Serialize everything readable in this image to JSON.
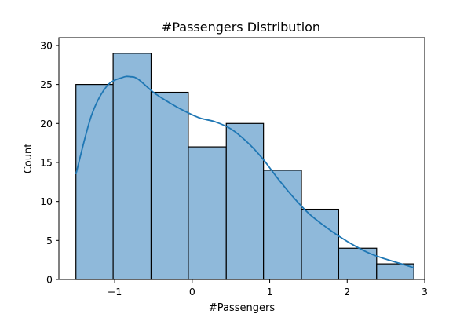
{
  "chart_data": {
    "type": "bar",
    "title": "#Passengers Distribution",
    "xlabel": "#Passengers",
    "ylabel": "Count",
    "xlim": [
      -1.72,
      3.0
    ],
    "ylim": [
      0,
      31
    ],
    "xticks": [
      -1,
      0,
      1,
      2,
      3
    ],
    "xtick_labels": [
      "−1",
      "0",
      "1",
      "2",
      "3"
    ],
    "yticks": [
      0,
      5,
      10,
      15,
      20,
      25,
      30
    ],
    "ytick_labels": [
      "0",
      "5",
      "10",
      "15",
      "20",
      "25",
      "30"
    ],
    "bin_edges": [
      -1.5,
      -1.02,
      -0.53,
      -0.05,
      0.44,
      0.92,
      1.41,
      1.89,
      2.38,
      2.86
    ],
    "counts": [
      25,
      29,
      24,
      17,
      20,
      14,
      9,
      4,
      2
    ],
    "colors": {
      "bar": "#8fb9da",
      "kde": "#1f77b4"
    },
    "kde_curve": {
      "x": [
        -1.5,
        -1.3,
        -1.1,
        -0.9,
        -0.8,
        -0.7,
        -0.5,
        -0.3,
        -0.1,
        0.1,
        0.3,
        0.5,
        0.7,
        0.9,
        1.1,
        1.3,
        1.5,
        1.7,
        1.9,
        2.1,
        2.3,
        2.5,
        2.7,
        2.86
      ],
      "y": [
        13.5,
        21.0,
        24.8,
        25.9,
        26.0,
        25.7,
        24.0,
        22.7,
        21.6,
        20.7,
        20.2,
        19.3,
        17.7,
        15.6,
        13.0,
        10.6,
        8.5,
        6.9,
        5.5,
        4.3,
        3.3,
        2.6,
        2.0,
        1.5
      ]
    },
    "grid": false,
    "legend": "none"
  }
}
